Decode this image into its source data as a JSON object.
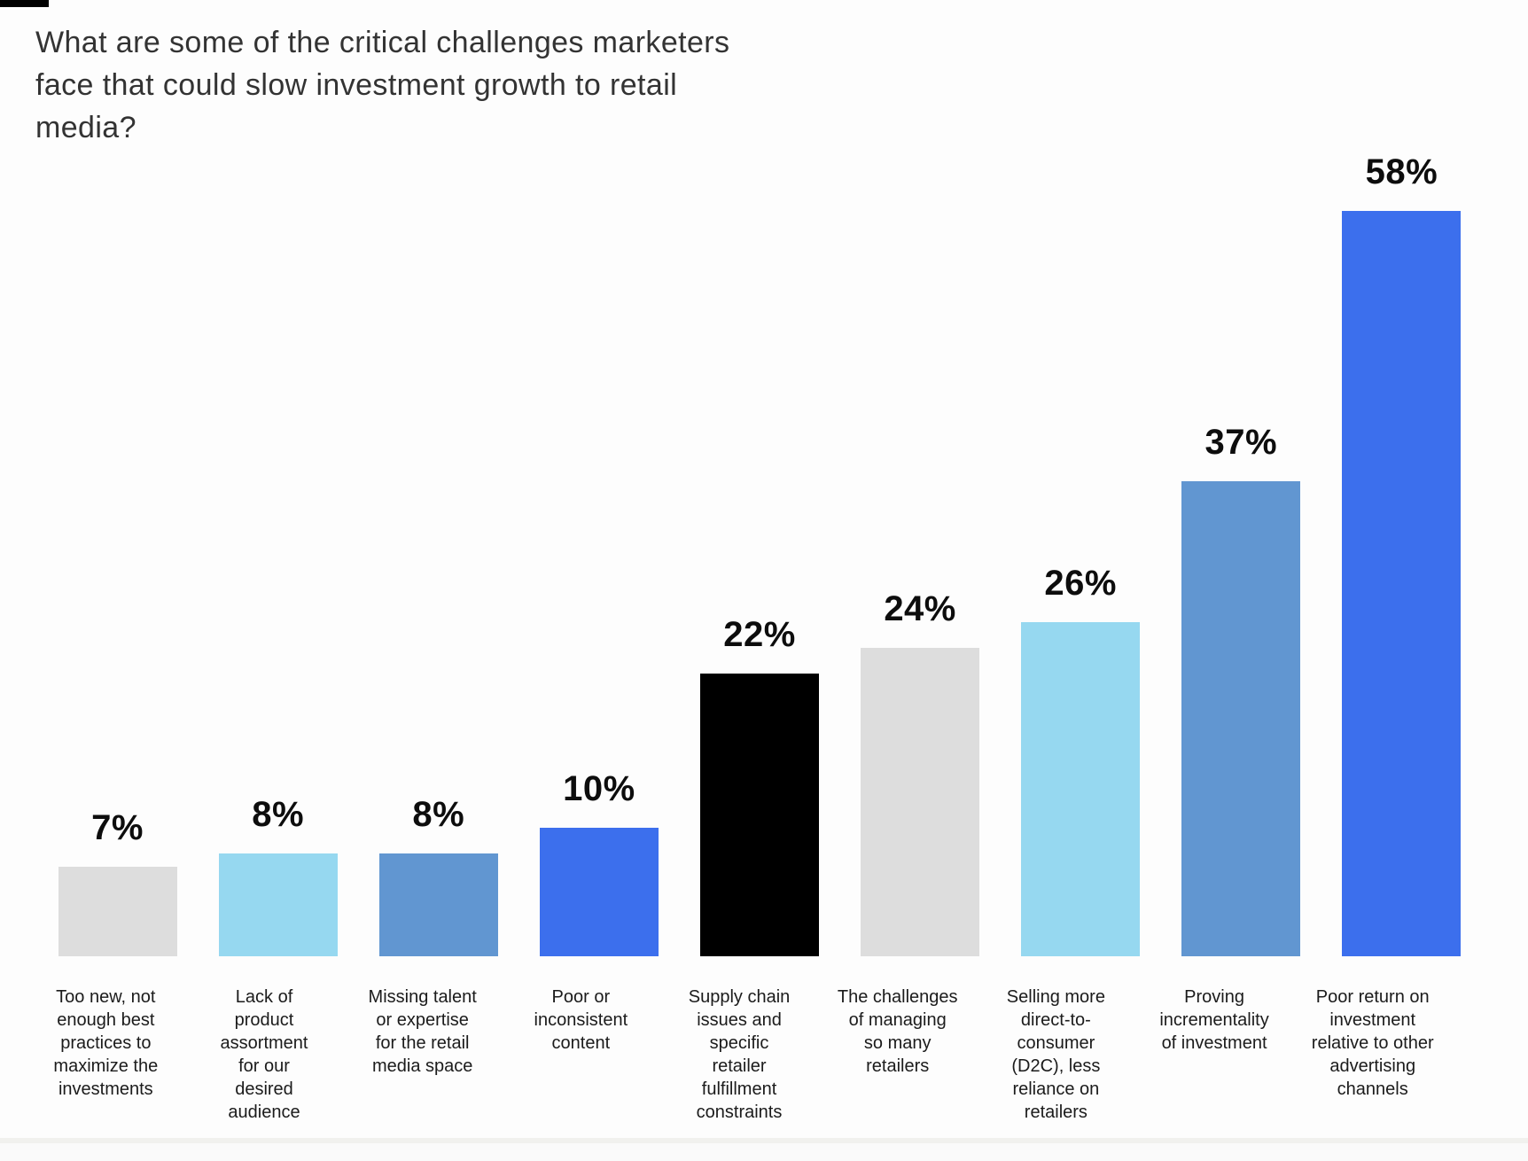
{
  "page": {
    "background": "#fdfdfd",
    "corner_mark_color": "#000000",
    "bottom_strip_color": "#f1f1ee"
  },
  "chart_data": {
    "type": "bar",
    "title": "What are some of the critical challenges marketers face that could slow investment growth to retail media?",
    "unit": "%",
    "ylim": [
      0,
      60
    ],
    "grid": false,
    "axes_visible": false,
    "legend_position": "none",
    "value_labels_visible": true,
    "categories": [
      "Too new, not enough best practices to maximize the investments",
      "Lack of product assortment for our desired audience",
      "Missing talent or expertise for the retail media space",
      "Poor or inconsistent content",
      "Supply chain issues and specific retailer fulfillment constraints",
      "The challenges of managing so many retailers",
      "Selling more direct-to-consumer (D2C), less reliance on retailers",
      "Proving incrementality of investment",
      "Poor return on investment relative to other advertising channels"
    ],
    "category_label_lines": [
      [
        "Too new, not",
        "enough best",
        "practices to",
        "maximize the",
        "investments"
      ],
      [
        "Lack of",
        "product",
        "assortment",
        "for our",
        "desired",
        "audience"
      ],
      [
        "Missing talent",
        "or expertise",
        "for the retail",
        "media space"
      ],
      [
        "Poor or",
        "inconsistent",
        "content"
      ],
      [
        "Supply chain",
        "issues and",
        "specific",
        "retailer",
        "fulfillment",
        "constraints"
      ],
      [
        "The challenges",
        "of managing",
        "so many",
        "retailers"
      ],
      [
        "Selling more",
        "direct-to-",
        "consumer",
        "(D2C), less",
        "reliance on",
        "retailers"
      ],
      [
        "Proving",
        "incrementality",
        "of investment"
      ],
      [
        "Poor return on",
        "investment",
        "relative to other",
        "advertising",
        "channels"
      ]
    ],
    "values": [
      7,
      8,
      8,
      10,
      22,
      24,
      26,
      37,
      58
    ],
    "value_labels": [
      "7%",
      "8%",
      "8%",
      "10%",
      "22%",
      "24%",
      "26%",
      "37%",
      "58%"
    ],
    "bar_colors": [
      "#dddddd",
      "#96d8f0",
      "#6196d1",
      "#3c6fed",
      "#000000",
      "#dddddd",
      "#96d8f0",
      "#6196d1",
      "#3c6fed"
    ],
    "palette": {
      "gray": "#dddddd",
      "light_blue": "#96d8f0",
      "steel_blue": "#6196d1",
      "royal_blue": "#3c6fed",
      "black": "#000000"
    },
    "text_colors": {
      "title": "#333333",
      "value_label": "#0d0d0d",
      "category_label": "#1b1b1b"
    }
  }
}
